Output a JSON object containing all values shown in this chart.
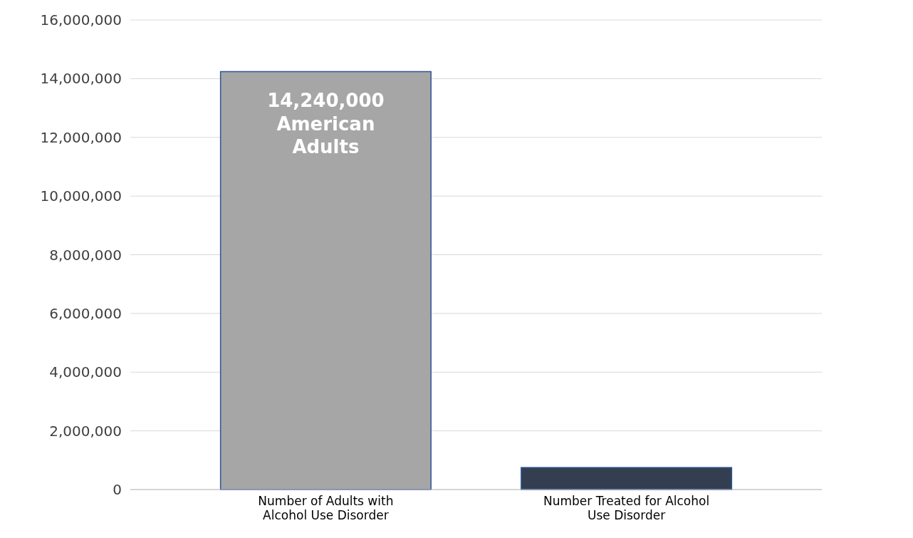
{
  "chart_data": {
    "type": "bar",
    "categories": [
      "Number of Adults with Alcohol Use Disorder",
      "Number Treated for Alcohol Use Disorder"
    ],
    "values": [
      14240000,
      750000
    ],
    "colors": [
      "#a6a6a6",
      "#333f50"
    ],
    "value_labels": [
      "14,240,000 American Adults",
      null
    ],
    "ylim": [
      0,
      16000000
    ],
    "yticks": [
      {
        "value": 0,
        "label": "0"
      },
      {
        "value": 2000000,
        "label": "2,000,000"
      },
      {
        "value": 4000000,
        "label": "4,000,000"
      },
      {
        "value": 6000000,
        "label": "6,000,000"
      },
      {
        "value": 8000000,
        "label": "8,000,000"
      },
      {
        "value": 10000000,
        "label": "10,000,000"
      },
      {
        "value": 12000000,
        "label": "12,000,000"
      },
      {
        "value": 14000000,
        "label": "14,000,000"
      },
      {
        "value": 16000000,
        "label": "16,000,000"
      }
    ],
    "grid": "y"
  }
}
